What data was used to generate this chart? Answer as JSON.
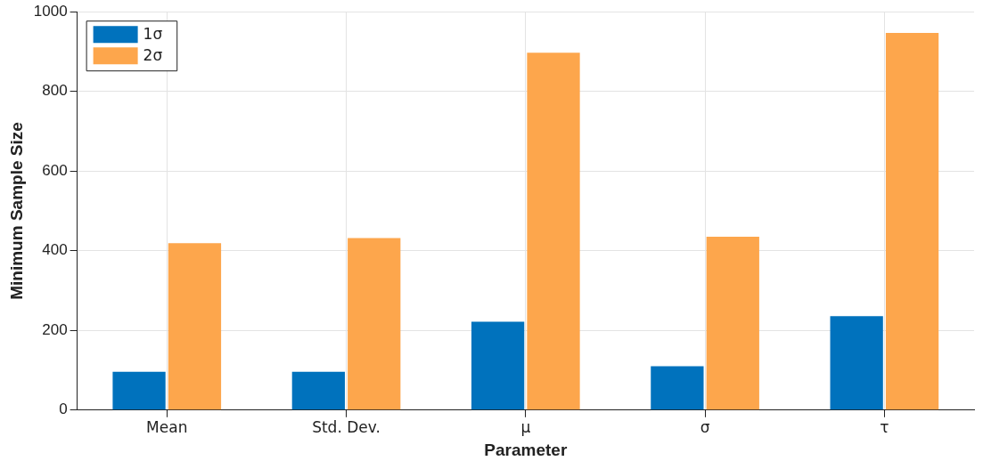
{
  "chart_data": {
    "type": "bar",
    "xlabel": "Parameter",
    "ylabel": "Minimum Sample Size",
    "categories": [
      "Mean",
      "Std. Dev.",
      "μ",
      "σ",
      "τ"
    ],
    "series": [
      {
        "name": "1σ",
        "color": "#0072bd",
        "values": [
          96,
          96,
          222,
          110,
          236
        ]
      },
      {
        "name": "2σ",
        "color": "#fda64c",
        "values": [
          419,
          432,
          897,
          435,
          947
        ]
      }
    ],
    "ylim": [
      0,
      1000
    ],
    "yticks": [
      0,
      200,
      400,
      600,
      800,
      1000
    ],
    "grid": true,
    "legend": "top left"
  }
}
